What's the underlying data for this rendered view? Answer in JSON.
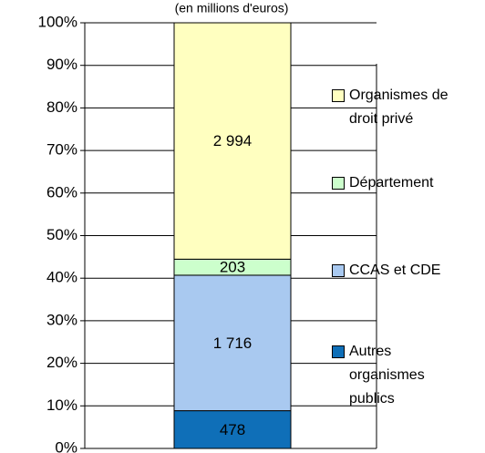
{
  "chart_data": {
    "type": "bar",
    "stacking": "percent",
    "subtitle": "(en millions d'euros)",
    "categories": [
      null
    ],
    "series": [
      {
        "name": "Autres organismes publics",
        "color": "#0f6fb8",
        "values": [
          478
        ]
      },
      {
        "name": "CCAS et CDE",
        "color": "#a9c9f0",
        "values": [
          1716
        ],
        "value_labels": [
          "1 716"
        ]
      },
      {
        "name": "Département",
        "color": "#ccffcc",
        "values": [
          203
        ]
      },
      {
        "name": "Organismes de droit privé",
        "color": "#ffffc0",
        "values": [
          2994
        ],
        "value_labels": [
          "2 994"
        ]
      }
    ],
    "ylim": [
      0,
      100
    ],
    "yticks": [
      {
        "value": 0,
        "label": "0%"
      },
      {
        "value": 10,
        "label": "10%"
      },
      {
        "value": 20,
        "label": "20%"
      },
      {
        "value": 30,
        "label": "30%"
      },
      {
        "value": 40,
        "label": "40%"
      },
      {
        "value": 50,
        "label": "50%"
      },
      {
        "value": 60,
        "label": "60%"
      },
      {
        "value": 70,
        "label": "70%"
      },
      {
        "value": 80,
        "label": "80%"
      },
      {
        "value": 90,
        "label": "90%"
      },
      {
        "value": 100,
        "label": "100%"
      }
    ],
    "grid": true,
    "legend": "right"
  }
}
